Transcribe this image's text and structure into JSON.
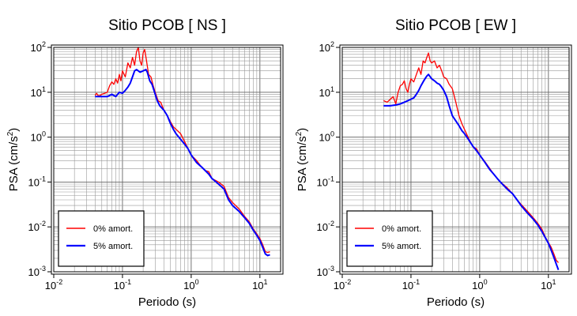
{
  "chart_data": [
    {
      "type": "line",
      "title": "Sitio PCOB [ NS ]",
      "xlabel": "Periodo (s)",
      "ylabel_main": "PSA (cm/s",
      "ylabel_sup": "2",
      "ylabel_end": ")",
      "xscale": "log",
      "yscale": "log",
      "xlim": [
        0.01,
        20
      ],
      "ylim": [
        0.001,
        100
      ],
      "x_ticks": [
        {
          "base": "10",
          "exp": "-2"
        },
        {
          "base": "10",
          "exp": "-1"
        },
        {
          "base": "10",
          "exp": "0"
        },
        {
          "base": "10",
          "exp": "1"
        }
      ],
      "y_ticks": [
        {
          "base": "10",
          "exp": "-3"
        },
        {
          "base": "10",
          "exp": "-2"
        },
        {
          "base": "10",
          "exp": "-1"
        },
        {
          "base": "10",
          "exp": "0"
        },
        {
          "base": "10",
          "exp": "1"
        },
        {
          "base": "10",
          "exp": "2"
        }
      ],
      "grid": true,
      "legend_position": "bottom-left",
      "series": [
        {
          "name": "0% amort.",
          "color": "#ff0000",
          "points": [
            [
              0.04,
              8.5
            ],
            [
              0.042,
              9.5
            ],
            [
              0.045,
              8.2
            ],
            [
              0.05,
              9
            ],
            [
              0.055,
              9.5
            ],
            [
              0.06,
              10
            ],
            [
              0.065,
              14
            ],
            [
              0.07,
              17
            ],
            [
              0.075,
              15
            ],
            [
              0.08,
              20
            ],
            [
              0.085,
              16
            ],
            [
              0.09,
              25
            ],
            [
              0.095,
              18
            ],
            [
              0.1,
              30
            ],
            [
              0.11,
              22
            ],
            [
              0.12,
              45
            ],
            [
              0.13,
              35
            ],
            [
              0.14,
              60
            ],
            [
              0.15,
              40
            ],
            [
              0.16,
              80
            ],
            [
              0.17,
              100
            ],
            [
              0.18,
              50
            ],
            [
              0.19,
              40
            ],
            [
              0.2,
              75
            ],
            [
              0.21,
              90
            ],
            [
              0.22,
              60
            ],
            [
              0.24,
              25
            ],
            [
              0.26,
              22
            ],
            [
              0.28,
              14
            ],
            [
              0.3,
              10
            ],
            [
              0.33,
              6.5
            ],
            [
              0.36,
              6
            ],
            [
              0.4,
              4
            ],
            [
              0.45,
              3
            ],
            [
              0.5,
              2.2
            ],
            [
              0.55,
              1.7
            ],
            [
              0.6,
              1.5
            ],
            [
              0.7,
              1.2
            ],
            [
              0.8,
              0.8
            ],
            [
              0.9,
              0.55
            ],
            [
              1,
              0.4
            ],
            [
              1.2,
              0.3
            ],
            [
              1.4,
              0.22
            ],
            [
              1.6,
              0.18
            ],
            [
              1.8,
              0.17
            ],
            [
              2,
              0.12
            ],
            [
              2.5,
              0.1
            ],
            [
              3,
              0.08
            ],
            [
              3.5,
              0.045
            ],
            [
              4,
              0.035
            ],
            [
              5,
              0.025
            ],
            [
              6,
              0.017
            ],
            [
              7,
              0.013
            ],
            [
              8,
              0.009
            ],
            [
              9,
              0.007
            ],
            [
              10,
              0.0055
            ],
            [
              11,
              0.004
            ],
            [
              12,
              0.0028
            ],
            [
              13,
              0.0027
            ],
            [
              14,
              0.0028
            ]
          ]
        },
        {
          "name": "5% amort.",
          "color": "#0000ff",
          "points": [
            [
              0.04,
              8
            ],
            [
              0.05,
              8
            ],
            [
              0.06,
              8
            ],
            [
              0.07,
              9
            ],
            [
              0.08,
              8
            ],
            [
              0.09,
              10
            ],
            [
              0.1,
              9.5
            ],
            [
              0.11,
              11
            ],
            [
              0.12,
              13
            ],
            [
              0.13,
              16
            ],
            [
              0.14,
              22
            ],
            [
              0.15,
              30
            ],
            [
              0.16,
              32
            ],
            [
              0.17,
              30
            ],
            [
              0.18,
              28
            ],
            [
              0.2,
              30
            ],
            [
              0.22,
              32
            ],
            [
              0.23,
              28
            ],
            [
              0.25,
              18
            ],
            [
              0.27,
              15
            ],
            [
              0.3,
              9
            ],
            [
              0.32,
              6.5
            ],
            [
              0.35,
              5
            ],
            [
              0.4,
              4
            ],
            [
              0.45,
              3
            ],
            [
              0.5,
              2
            ],
            [
              0.55,
              1.5
            ],
            [
              0.6,
              1.2
            ],
            [
              0.7,
              0.9
            ],
            [
              0.8,
              0.7
            ],
            [
              0.9,
              0.55
            ],
            [
              1,
              0.4
            ],
            [
              1.2,
              0.27
            ],
            [
              1.4,
              0.22
            ],
            [
              1.6,
              0.18
            ],
            [
              1.8,
              0.15
            ],
            [
              2,
              0.12
            ],
            [
              2.5,
              0.09
            ],
            [
              3,
              0.07
            ],
            [
              3.5,
              0.04
            ],
            [
              4,
              0.03
            ],
            [
              5,
              0.022
            ],
            [
              6,
              0.016
            ],
            [
              7,
              0.012
            ],
            [
              8,
              0.0085
            ],
            [
              9,
              0.0065
            ],
            [
              10,
              0.005
            ],
            [
              11,
              0.0035
            ],
            [
              12,
              0.0025
            ],
            [
              13,
              0.0023
            ],
            [
              14,
              0.0024
            ]
          ]
        }
      ]
    },
    {
      "type": "line",
      "title": "Sitio PCOB [ EW ]",
      "xlabel": "Periodo (s)",
      "ylabel_main": "PSA (cm/s",
      "ylabel_sup": "2",
      "ylabel_end": ")",
      "xscale": "log",
      "yscale": "log",
      "xlim": [
        0.01,
        20
      ],
      "ylim": [
        0.001,
        100
      ],
      "x_ticks": [
        {
          "base": "10",
          "exp": "-2"
        },
        {
          "base": "10",
          "exp": "-1"
        },
        {
          "base": "10",
          "exp": "0"
        },
        {
          "base": "10",
          "exp": "1"
        }
      ],
      "y_ticks": [
        {
          "base": "10",
          "exp": "-3"
        },
        {
          "base": "10",
          "exp": "-2"
        },
        {
          "base": "10",
          "exp": "-1"
        },
        {
          "base": "10",
          "exp": "0"
        },
        {
          "base": "10",
          "exp": "1"
        },
        {
          "base": "10",
          "exp": "2"
        }
      ],
      "grid": true,
      "legend_position": "bottom-left",
      "series": [
        {
          "name": "0% amort.",
          "color": "#ff0000",
          "points": [
            [
              0.04,
              6.5
            ],
            [
              0.045,
              6
            ],
            [
              0.05,
              7
            ],
            [
              0.055,
              8
            ],
            [
              0.06,
              5.5
            ],
            [
              0.065,
              10
            ],
            [
              0.07,
              14
            ],
            [
              0.075,
              15
            ],
            [
              0.08,
              18
            ],
            [
              0.085,
              12
            ],
            [
              0.09,
              10
            ],
            [
              0.095,
              15
            ],
            [
              0.1,
              20
            ],
            [
              0.11,
              17
            ],
            [
              0.12,
              25
            ],
            [
              0.13,
              35
            ],
            [
              0.14,
              25
            ],
            [
              0.15,
              50
            ],
            [
              0.16,
              45
            ],
            [
              0.17,
              60
            ],
            [
              0.18,
              75
            ],
            [
              0.19,
              50
            ],
            [
              0.2,
              45
            ],
            [
              0.22,
              50
            ],
            [
              0.24,
              35
            ],
            [
              0.26,
              40
            ],
            [
              0.28,
              30
            ],
            [
              0.3,
              22
            ],
            [
              0.33,
              20
            ],
            [
              0.36,
              15
            ],
            [
              0.4,
              12
            ],
            [
              0.45,
              6
            ],
            [
              0.5,
              3
            ],
            [
              0.55,
              2
            ],
            [
              0.6,
              1.5
            ],
            [
              0.7,
              0.9
            ],
            [
              0.8,
              0.6
            ],
            [
              0.9,
              0.55
            ],
            [
              1,
              0.4
            ],
            [
              1.2,
              0.28
            ],
            [
              1.4,
              0.2
            ],
            [
              1.6,
              0.15
            ],
            [
              1.8,
              0.12
            ],
            [
              2,
              0.1
            ],
            [
              2.5,
              0.075
            ],
            [
              3,
              0.055
            ],
            [
              3.5,
              0.04
            ],
            [
              4,
              0.032
            ],
            [
              5,
              0.022
            ],
            [
              6,
              0.016
            ],
            [
              7,
              0.012
            ],
            [
              8,
              0.009
            ],
            [
              9,
              0.006
            ],
            [
              10,
              0.0045
            ],
            [
              11,
              0.0035
            ],
            [
              12,
              0.0025
            ],
            [
              13,
              0.0018
            ],
            [
              14,
              0.0016
            ]
          ]
        },
        {
          "name": "5% amort.",
          "color": "#0000ff",
          "points": [
            [
              0.04,
              5
            ],
            [
              0.05,
              5
            ],
            [
              0.06,
              5.2
            ],
            [
              0.07,
              5.5
            ],
            [
              0.08,
              6
            ],
            [
              0.09,
              6.5
            ],
            [
              0.1,
              7
            ],
            [
              0.11,
              7.5
            ],
            [
              0.12,
              9
            ],
            [
              0.13,
              11
            ],
            [
              0.14,
              14
            ],
            [
              0.15,
              17
            ],
            [
              0.16,
              20
            ],
            [
              0.17,
              23
            ],
            [
              0.18,
              25
            ],
            [
              0.2,
              20
            ],
            [
              0.22,
              18
            ],
            [
              0.24,
              16
            ],
            [
              0.26,
              15
            ],
            [
              0.28,
              13
            ],
            [
              0.3,
              11
            ],
            [
              0.33,
              8
            ],
            [
              0.36,
              5
            ],
            [
              0.4,
              3
            ],
            [
              0.45,
              2.3
            ],
            [
              0.5,
              1.8
            ],
            [
              0.55,
              1.4
            ],
            [
              0.6,
              1.2
            ],
            [
              0.7,
              0.85
            ],
            [
              0.8,
              0.62
            ],
            [
              0.9,
              0.5
            ],
            [
              1,
              0.4
            ],
            [
              1.2,
              0.27
            ],
            [
              1.4,
              0.19
            ],
            [
              1.6,
              0.15
            ],
            [
              1.8,
              0.12
            ],
            [
              2,
              0.1
            ],
            [
              2.5,
              0.07
            ],
            [
              3,
              0.055
            ],
            [
              3.5,
              0.04
            ],
            [
              4,
              0.03
            ],
            [
              5,
              0.02
            ],
            [
              6,
              0.015
            ],
            [
              7,
              0.011
            ],
            [
              8,
              0.008
            ],
            [
              9,
              0.0058
            ],
            [
              10,
              0.0043
            ],
            [
              11,
              0.003
            ],
            [
              12,
              0.0021
            ],
            [
              13,
              0.0015
            ],
            [
              14,
              0.0011
            ]
          ]
        }
      ]
    }
  ]
}
